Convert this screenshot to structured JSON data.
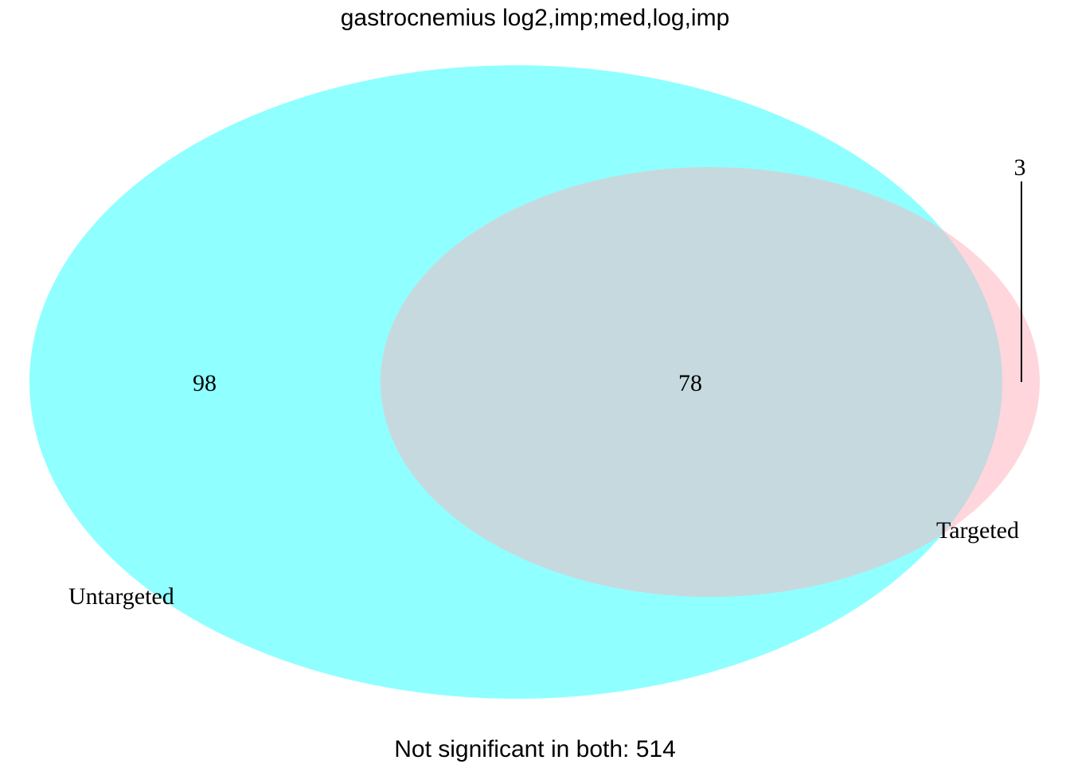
{
  "title": "gastrocnemius log2,imp;med,log,imp",
  "sets": {
    "untargeted": {
      "label": "Untargeted",
      "color": "#8FFFFF"
    },
    "targeted": {
      "label": "Targeted",
      "color": "#FFD6DC"
    },
    "overlap_color": "#C6D9DF"
  },
  "counts": {
    "untargeted_only": "98",
    "both": "78",
    "targeted_only": "3"
  },
  "footer": "Not significant in both: 514"
}
